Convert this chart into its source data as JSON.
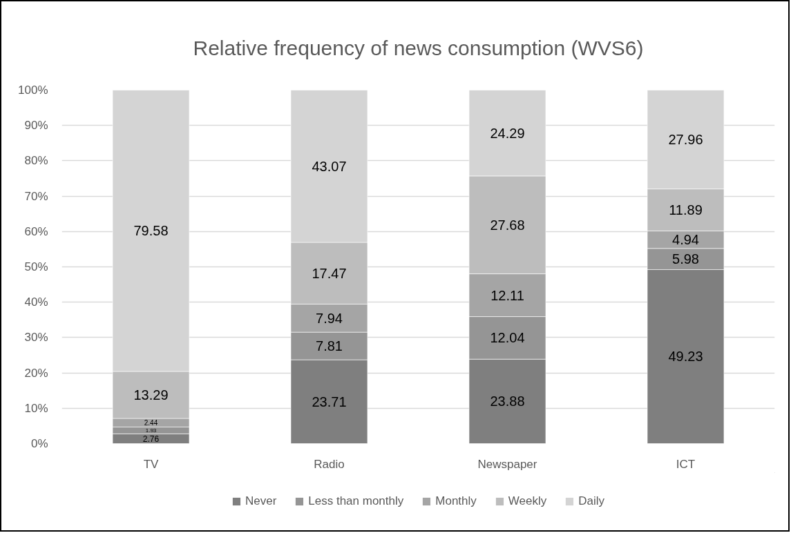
{
  "chart_data": {
    "type": "bar",
    "title": "Relative frequency of news consumption (WVS6)",
    "categories": [
      "TV",
      "Radio",
      "Newspaper",
      "ICT"
    ],
    "stacked": true,
    "series": [
      {
        "name": "Never",
        "color": "#7f7f7f",
        "values": [
          2.76,
          23.71,
          23.88,
          49.23
        ]
      },
      {
        "name": "Less than monthly",
        "color": "#959595",
        "values": [
          1.93,
          7.81,
          12.04,
          5.98
        ]
      },
      {
        "name": "Monthly",
        "color": "#a5a5a5",
        "values": [
          2.44,
          7.94,
          12.11,
          4.94
        ]
      },
      {
        "name": "Weekly",
        "color": "#bdbdbd",
        "values": [
          13.29,
          17.47,
          27.68,
          11.89
        ]
      },
      {
        "name": "Daily",
        "color": "#d4d4d4",
        "values": [
          79.58,
          43.07,
          24.29,
          27.96
        ]
      }
    ],
    "ylim": [
      0,
      100
    ],
    "yticks": [
      {
        "value": 0,
        "label": "0%"
      },
      {
        "value": 10,
        "label": "10%"
      },
      {
        "value": 20,
        "label": "20%"
      },
      {
        "value": 30,
        "label": "30%"
      },
      {
        "value": 40,
        "label": "40%"
      },
      {
        "value": 50,
        "label": "50%"
      },
      {
        "value": 60,
        "label": "60%"
      },
      {
        "value": 70,
        "label": "70%"
      },
      {
        "value": 80,
        "label": "80%"
      },
      {
        "value": 90,
        "label": "90%"
      },
      {
        "value": 100,
        "label": "100%"
      }
    ],
    "grid": "y",
    "legend": "bottom",
    "data_labels": true
  }
}
